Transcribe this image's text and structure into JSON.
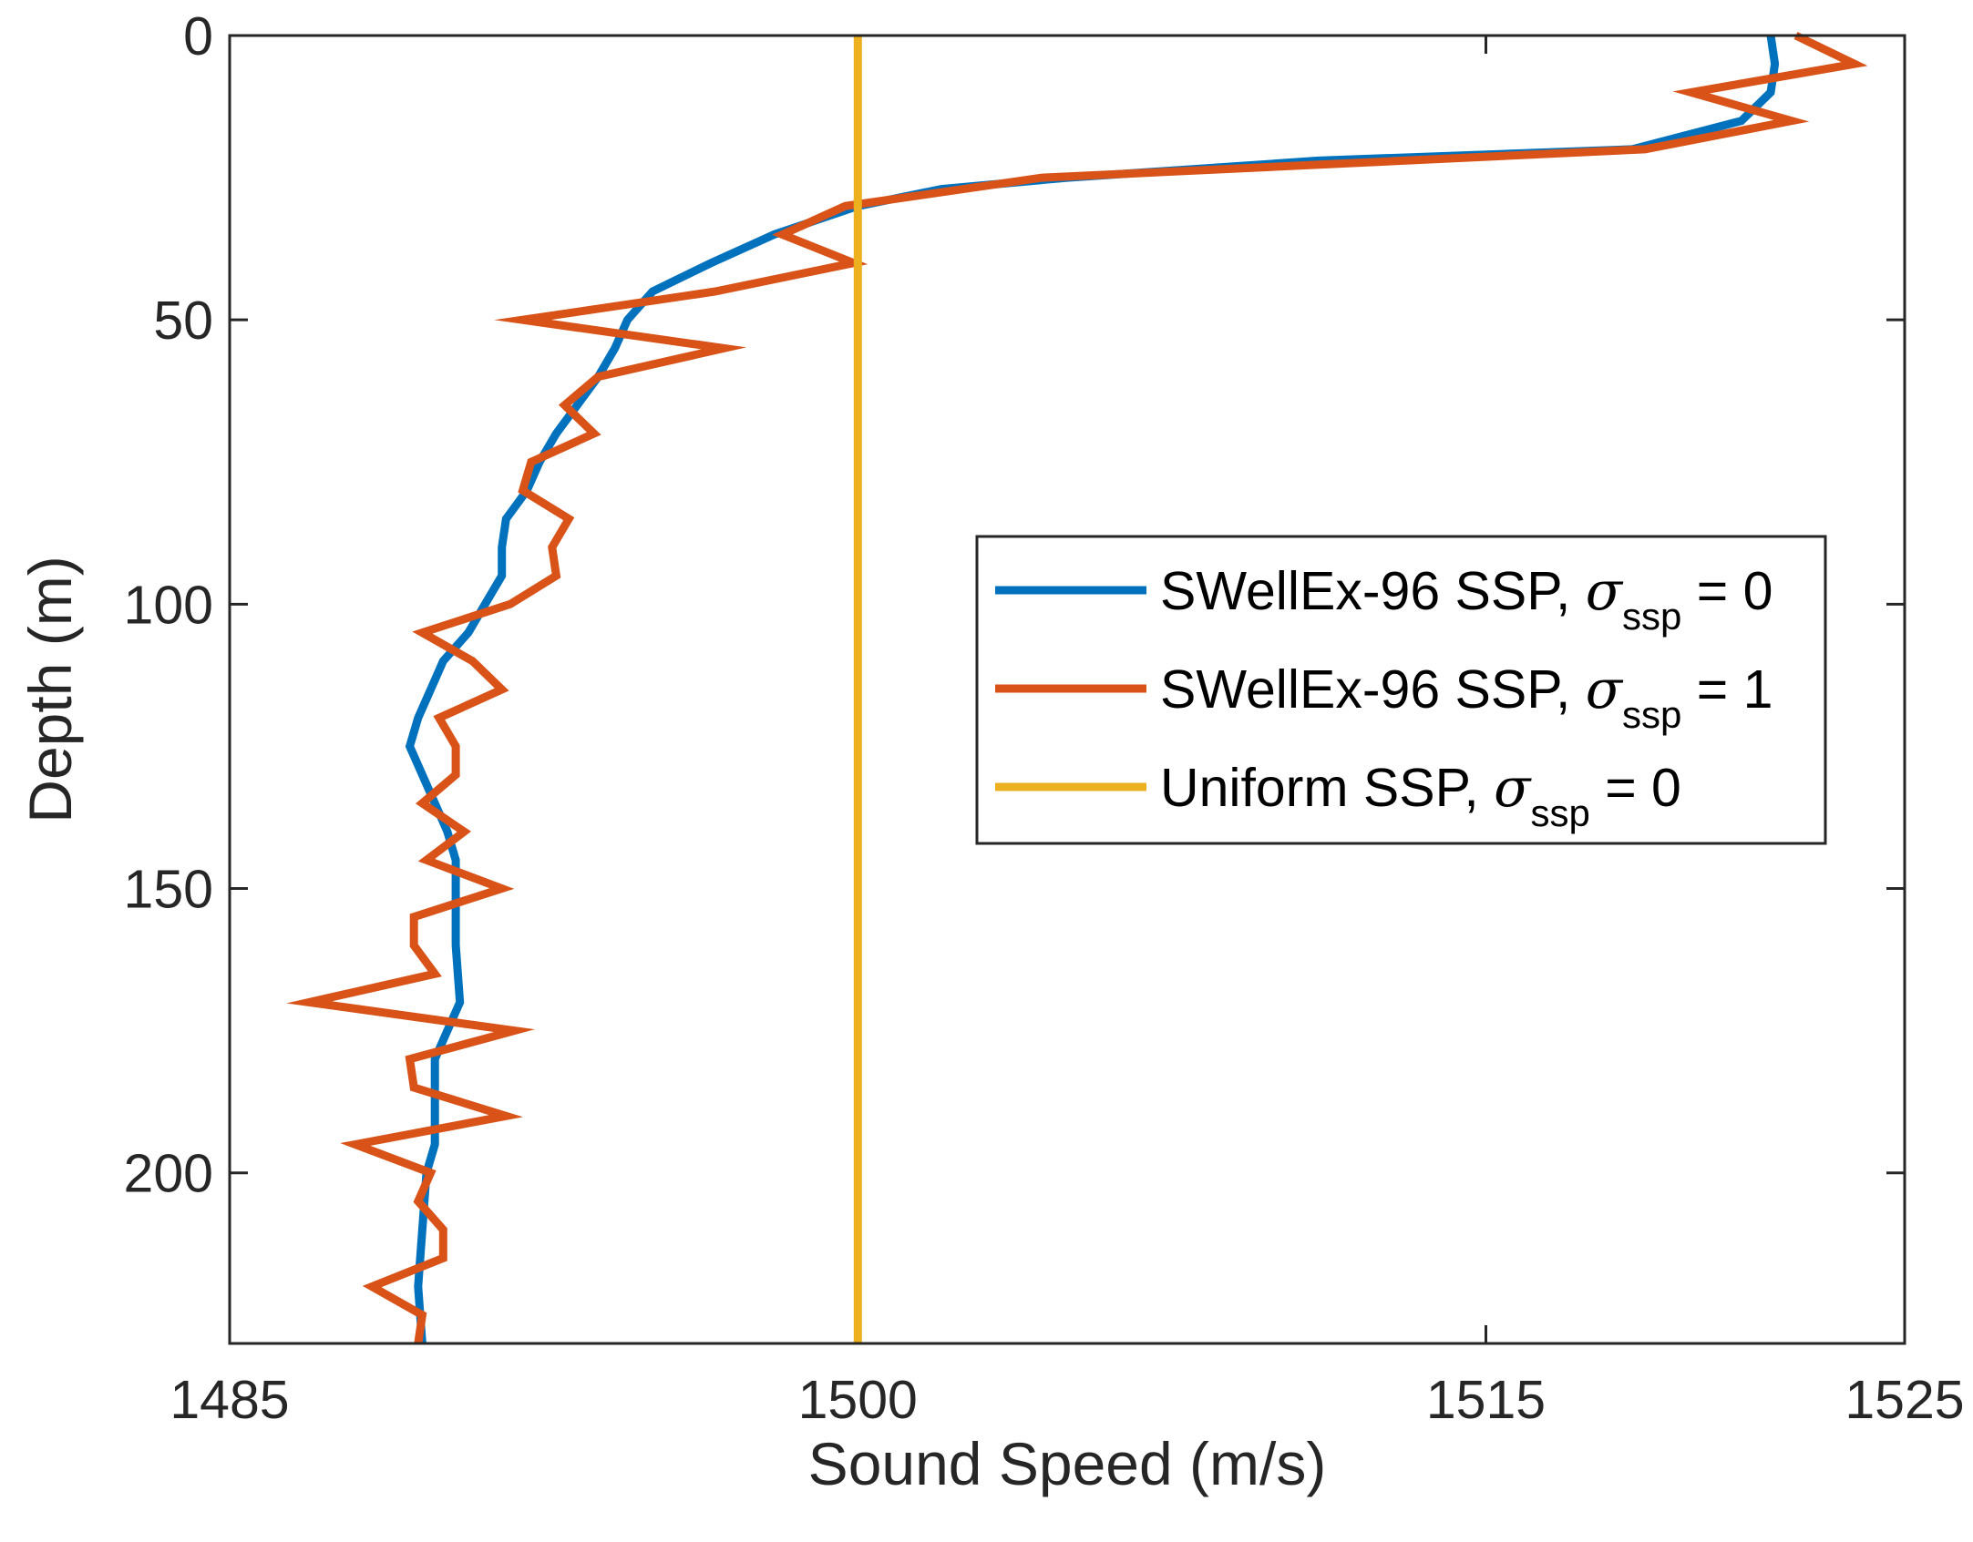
{
  "chart_data": {
    "type": "line",
    "xlabel": "Sound Speed (m/s)",
    "ylabel": "Depth (m)",
    "xlim": [
      1485,
      1525
    ],
    "ylim": [
      0,
      230
    ],
    "y_reversed": true,
    "xticks": [
      1485,
      1500,
      1515,
      1525
    ],
    "yticks": [
      0,
      50,
      100,
      150,
      200
    ],
    "grid": false,
    "legend_position": "right-middle",
    "series": [
      {
        "name": "SWellEx-96 SSP, σ_ssp = 0",
        "legend_prefix": "SWellEx-96 SSP, ",
        "legend_symbol": "σ",
        "legend_subscript": "ssp",
        "legend_suffix": " = 0",
        "color": "#0072BD",
        "points": [
          [
            1521.8,
            0
          ],
          [
            1521.9,
            5
          ],
          [
            1521.8,
            10
          ],
          [
            1521.1,
            15
          ],
          [
            1518.5,
            20
          ],
          [
            1511.0,
            22
          ],
          [
            1505.0,
            25
          ],
          [
            1502.0,
            27
          ],
          [
            1500.0,
            30
          ],
          [
            1498.0,
            35
          ],
          [
            1496.5,
            40
          ],
          [
            1495.1,
            45
          ],
          [
            1494.5,
            50
          ],
          [
            1494.2,
            55
          ],
          [
            1493.8,
            60
          ],
          [
            1493.3,
            65
          ],
          [
            1492.8,
            70
          ],
          [
            1492.4,
            75
          ],
          [
            1492.1,
            80
          ],
          [
            1491.6,
            85
          ],
          [
            1491.5,
            90
          ],
          [
            1491.5,
            95
          ],
          [
            1491.1,
            100
          ],
          [
            1490.7,
            105
          ],
          [
            1490.1,
            110
          ],
          [
            1489.8,
            115
          ],
          [
            1489.5,
            120
          ],
          [
            1489.3,
            125
          ],
          [
            1489.6,
            130
          ],
          [
            1489.9,
            135
          ],
          [
            1490.2,
            140
          ],
          [
            1490.4,
            145
          ],
          [
            1490.4,
            150
          ],
          [
            1490.4,
            160
          ],
          [
            1490.5,
            170
          ],
          [
            1490.2,
            175
          ],
          [
            1489.9,
            180
          ],
          [
            1489.9,
            185
          ],
          [
            1489.9,
            195
          ],
          [
            1489.7,
            200
          ],
          [
            1489.6,
            210
          ],
          [
            1489.5,
            220
          ],
          [
            1489.6,
            230
          ]
        ]
      },
      {
        "name": "SWellEx-96 SSP, σ_ssp = 1",
        "legend_prefix": "SWellEx-96 SSP, ",
        "legend_symbol": "σ",
        "legend_subscript": "ssp",
        "legend_suffix": " = 1",
        "color": "#D95319",
        "points": [
          [
            1522.4,
            0
          ],
          [
            1523.8,
            5
          ],
          [
            1519.9,
            10
          ],
          [
            1522.3,
            15
          ],
          [
            1518.8,
            20
          ],
          [
            1504.4,
            25
          ],
          [
            1499.7,
            30
          ],
          [
            1498.2,
            35
          ],
          [
            1499.9,
            40
          ],
          [
            1496.6,
            45
          ],
          [
            1492.0,
            50
          ],
          [
            1496.8,
            55
          ],
          [
            1493.8,
            60
          ],
          [
            1493.0,
            65
          ],
          [
            1493.7,
            70
          ],
          [
            1492.2,
            75
          ],
          [
            1492.0,
            80
          ],
          [
            1493.1,
            85
          ],
          [
            1492.7,
            90
          ],
          [
            1492.8,
            95
          ],
          [
            1491.7,
            100
          ],
          [
            1489.6,
            105
          ],
          [
            1490.8,
            110
          ],
          [
            1491.5,
            115
          ],
          [
            1490.0,
            120
          ],
          [
            1490.4,
            125
          ],
          [
            1490.4,
            130
          ],
          [
            1489.6,
            135
          ],
          [
            1490.6,
            140
          ],
          [
            1489.7,
            145
          ],
          [
            1491.5,
            150
          ],
          [
            1489.4,
            155
          ],
          [
            1489.4,
            160
          ],
          [
            1489.9,
            165
          ],
          [
            1486.9,
            170
          ],
          [
            1491.8,
            175
          ],
          [
            1489.3,
            180
          ],
          [
            1489.4,
            185
          ],
          [
            1491.6,
            190
          ],
          [
            1488.0,
            195
          ],
          [
            1489.8,
            200
          ],
          [
            1489.5,
            205
          ],
          [
            1490.1,
            210
          ],
          [
            1490.1,
            215
          ],
          [
            1488.4,
            220
          ],
          [
            1489.6,
            225
          ],
          [
            1489.5,
            230
          ]
        ]
      },
      {
        "name": "Uniform SSP, σ_ssp = 0",
        "legend_prefix": "Uniform SSP, ",
        "legend_symbol": "σ",
        "legend_subscript": "ssp",
        "legend_suffix": " = 0",
        "color": "#EDB120",
        "points": [
          [
            1500,
            0
          ],
          [
            1500,
            230
          ]
        ]
      }
    ]
  }
}
